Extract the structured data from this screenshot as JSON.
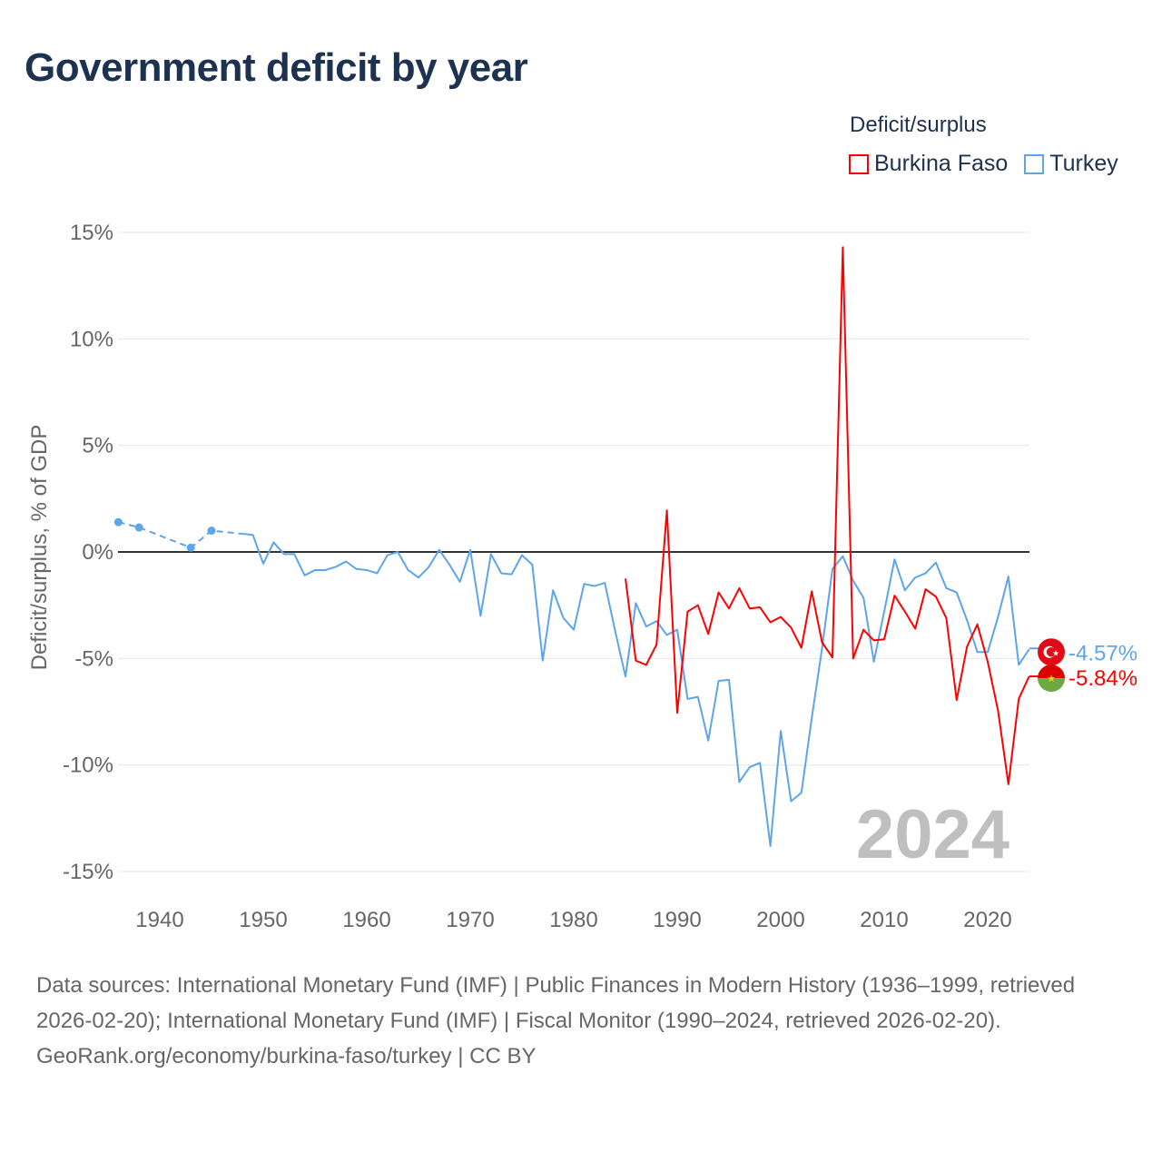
{
  "title": "Government deficit by year",
  "legend": {
    "title": "Deficit/surplus",
    "items": [
      {
        "name": "Burkina Faso",
        "color": "#ff0000"
      },
      {
        "name": "Turkey",
        "color": "#5da5ea"
      }
    ]
  },
  "chart_data": {
    "type": "line",
    "title": "Government deficit by year",
    "xlabel": "",
    "ylabel": "Deficit/surplus, % of GDP",
    "xlim": [
      1936,
      2024
    ],
    "ylim": [
      -15,
      15
    ],
    "x_ticks": [
      "1940",
      "1950",
      "1960",
      "1970",
      "1980",
      "1990",
      "2000",
      "2010",
      "2020"
    ],
    "y_ticks": [
      {
        "value": 15,
        "label": "15%"
      },
      {
        "value": 10,
        "label": "10%"
      },
      {
        "value": 5,
        "label": "5%"
      },
      {
        "value": 0,
        "label": "0%"
      },
      {
        "value": -5,
        "label": "-5%"
      },
      {
        "value": -10,
        "label": "-10%"
      },
      {
        "value": -15,
        "label": "-15%"
      }
    ],
    "grid": true,
    "legend_position": "top-right",
    "year_watermark": "2024",
    "series": [
      {
        "name": "Turkey",
        "color": "#5da5ea",
        "end_label": "-4.57%",
        "sparse_points": [
          [
            1936,
            1.4
          ],
          [
            1938,
            1.15
          ],
          [
            1943,
            0.2
          ],
          [
            1945,
            1.0
          ],
          [
            1948,
            0.85
          ]
        ],
        "points": [
          [
            1948,
            0.85
          ],
          [
            1949,
            0.8
          ],
          [
            1950,
            -0.55
          ],
          [
            1951,
            0.45
          ],
          [
            1952,
            -0.1
          ],
          [
            1953,
            -0.1
          ],
          [
            1954,
            -1.1
          ],
          [
            1955,
            -0.85
          ],
          [
            1956,
            -0.85
          ],
          [
            1957,
            -0.7
          ],
          [
            1958,
            -0.45
          ],
          [
            1959,
            -0.8
          ],
          [
            1960,
            -0.85
          ],
          [
            1961,
            -1.0
          ],
          [
            1962,
            -0.15
          ],
          [
            1963,
            0.0
          ],
          [
            1964,
            -0.85
          ],
          [
            1965,
            -1.2
          ],
          [
            1966,
            -0.7
          ],
          [
            1967,
            0.1
          ],
          [
            1968,
            -0.6
          ],
          [
            1969,
            -1.4
          ],
          [
            1970,
            0.1
          ],
          [
            1971,
            -3.0
          ],
          [
            1972,
            -0.1
          ],
          [
            1973,
            -1.0
          ],
          [
            1974,
            -1.05
          ],
          [
            1975,
            -0.15
          ],
          [
            1976,
            -0.6
          ],
          [
            1977,
            -5.1
          ],
          [
            1978,
            -1.8
          ],
          [
            1979,
            -3.1
          ],
          [
            1980,
            -3.65
          ],
          [
            1981,
            -1.5
          ],
          [
            1982,
            -1.6
          ],
          [
            1983,
            -1.45
          ],
          [
            1984,
            -3.7
          ],
          [
            1985,
            -5.85
          ],
          [
            1986,
            -2.4
          ],
          [
            1987,
            -3.5
          ],
          [
            1988,
            -3.25
          ],
          [
            1989,
            -3.9
          ],
          [
            1990,
            -3.65
          ],
          [
            1991,
            -6.9
          ],
          [
            1992,
            -6.8
          ],
          [
            1993,
            -8.85
          ],
          [
            1994,
            -6.05
          ],
          [
            1995,
            -6.0
          ],
          [
            1996,
            -10.8
          ],
          [
            1997,
            -10.1
          ],
          [
            1998,
            -9.9
          ],
          [
            1999,
            -13.8
          ],
          [
            2000,
            -8.4
          ],
          [
            2001,
            -11.7
          ],
          [
            2002,
            -11.3
          ],
          [
            2003,
            -7.8
          ],
          [
            2004,
            -4.5
          ],
          [
            2005,
            -0.8
          ],
          [
            2006,
            -0.2
          ],
          [
            2007,
            -1.35
          ],
          [
            2008,
            -2.15
          ],
          [
            2009,
            -5.15
          ],
          [
            2010,
            -2.8
          ],
          [
            2011,
            -0.35
          ],
          [
            2012,
            -1.8
          ],
          [
            2013,
            -1.2
          ],
          [
            2014,
            -1.0
          ],
          [
            2015,
            -0.5
          ],
          [
            2016,
            -1.7
          ],
          [
            2017,
            -1.9
          ],
          [
            2018,
            -3.2
          ],
          [
            2019,
            -4.7
          ],
          [
            2020,
            -4.7
          ],
          [
            2021,
            -3.05
          ],
          [
            2022,
            -1.15
          ],
          [
            2023,
            -5.3
          ],
          [
            2024,
            -4.57
          ]
        ]
      },
      {
        "name": "Burkina Faso",
        "color": "#ff0000",
        "end_label": "-5.84%",
        "points": [
          [
            1985,
            -1.25
          ],
          [
            1986,
            -5.1
          ],
          [
            1987,
            -5.3
          ],
          [
            1988,
            -4.35
          ],
          [
            1989,
            1.95
          ],
          [
            1990,
            -7.55
          ],
          [
            1991,
            -2.8
          ],
          [
            1992,
            -2.5
          ],
          [
            1993,
            -3.85
          ],
          [
            1994,
            -1.9
          ],
          [
            1995,
            -2.65
          ],
          [
            1996,
            -1.7
          ],
          [
            1997,
            -2.65
          ],
          [
            1998,
            -2.6
          ],
          [
            1999,
            -3.3
          ],
          [
            2000,
            -3.05
          ],
          [
            2001,
            -3.55
          ],
          [
            2002,
            -4.5
          ],
          [
            2003,
            -1.85
          ],
          [
            2004,
            -4.25
          ],
          [
            2005,
            -4.95
          ],
          [
            2006,
            14.3
          ],
          [
            2007,
            -5.0
          ],
          [
            2008,
            -3.65
          ],
          [
            2009,
            -4.15
          ],
          [
            2010,
            -4.1
          ],
          [
            2011,
            -2.05
          ],
          [
            2012,
            -2.8
          ],
          [
            2013,
            -3.6
          ],
          [
            2014,
            -1.75
          ],
          [
            2015,
            -2.1
          ],
          [
            2016,
            -3.1
          ],
          [
            2017,
            -6.95
          ],
          [
            2018,
            -4.45
          ],
          [
            2019,
            -3.4
          ],
          [
            2020,
            -5.15
          ],
          [
            2021,
            -7.45
          ],
          [
            2022,
            -10.9
          ],
          [
            2023,
            -6.9
          ],
          [
            2024,
            -5.84
          ]
        ]
      }
    ]
  },
  "footer": {
    "sources": "Data sources: International Monetary Fund (IMF) | Public Finances in Modern History (1936–1999, retrieved 2026-02-20); International Monetary Fund (IMF) | Fiscal Monitor (1990–2024, retrieved 2026-02-20).",
    "credit": "GeoRank.org/economy/burkina-faso/turkey | CC BY"
  }
}
